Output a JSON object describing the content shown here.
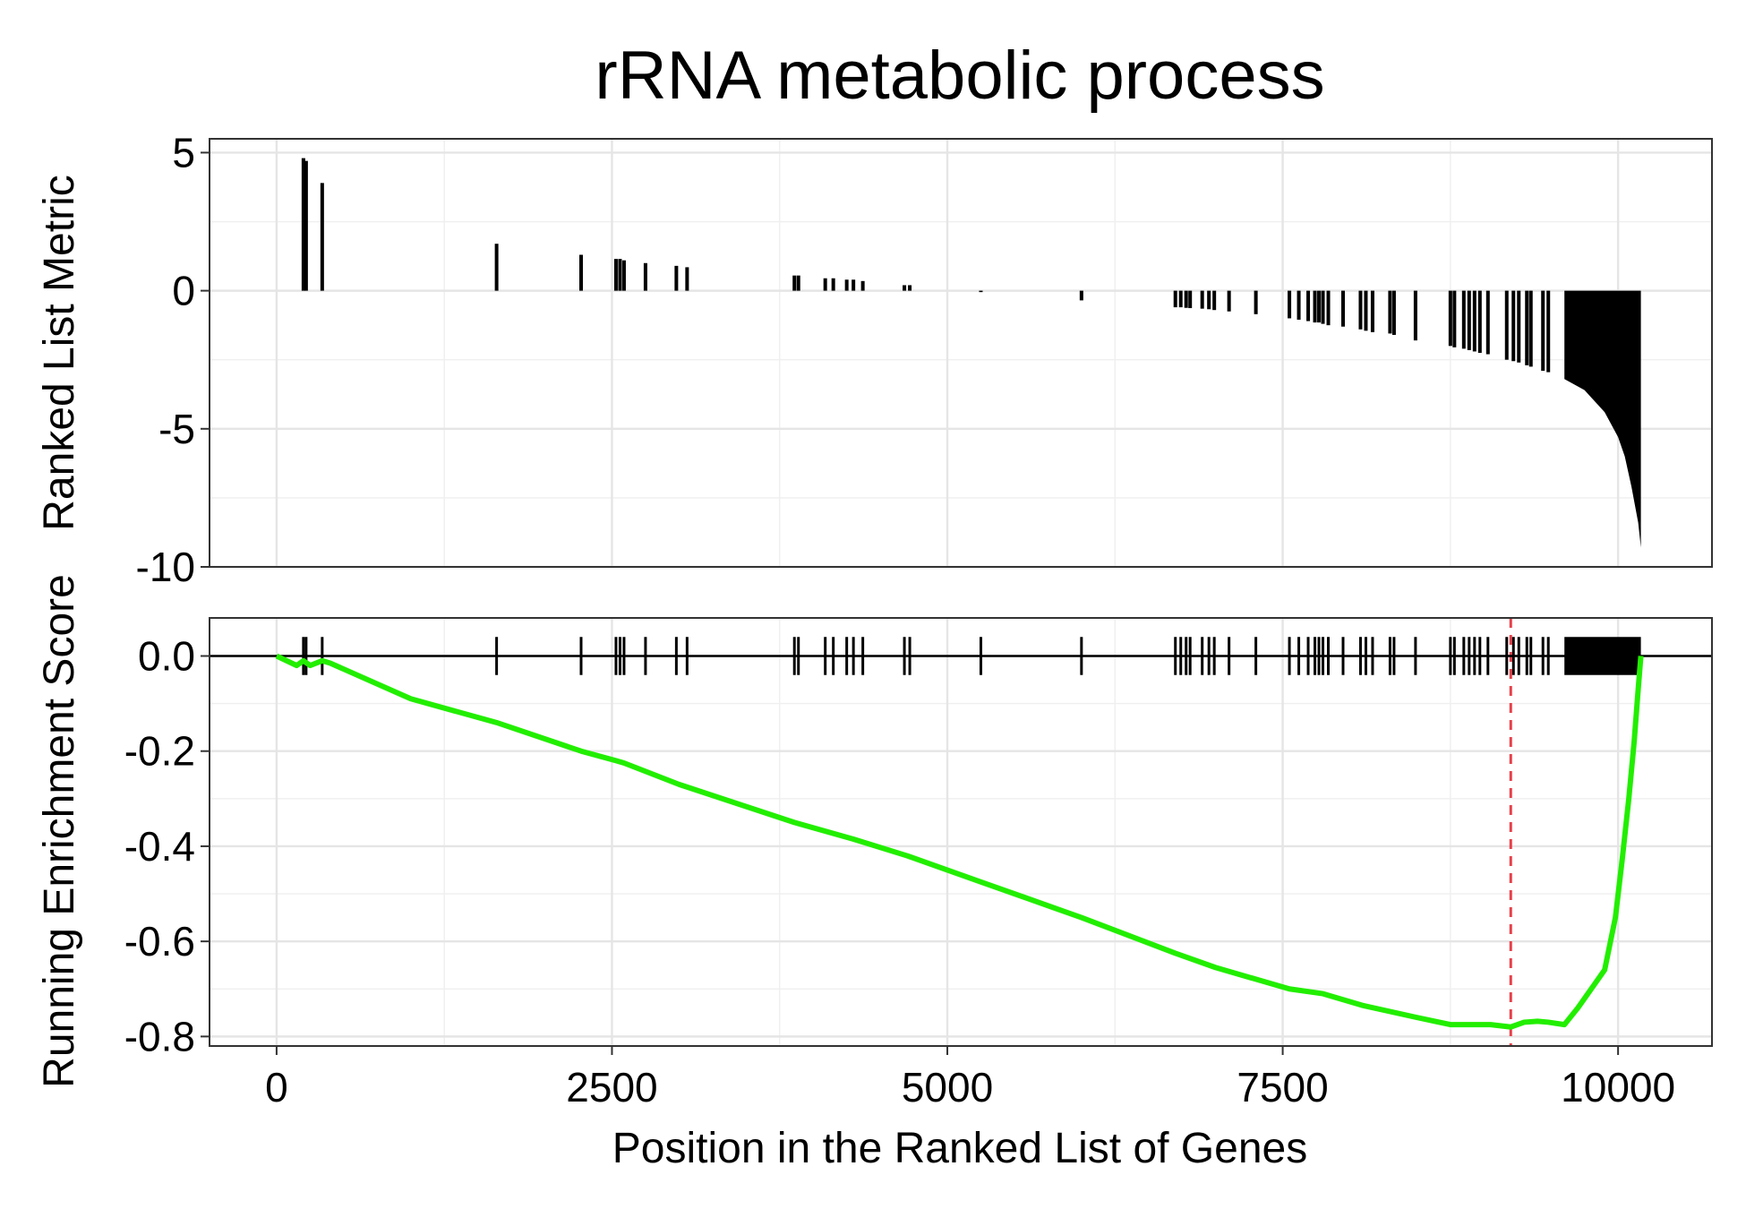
{
  "chart_data": [
    {
      "panel": "top",
      "type": "bar",
      "title": "rRNA metabolic process",
      "ylabel": "Ranked List Metric",
      "xlim": [
        -500,
        10700
      ],
      "ylim": [
        -10,
        5.5
      ],
      "yticks": [
        5,
        0,
        -5,
        -10
      ],
      "ytick_labels": [
        "5",
        "0",
        "-5",
        "-10"
      ],
      "grid": true,
      "bars": [
        {
          "x": 200,
          "y": 4.8
        },
        {
          "x": 220,
          "y": 4.7
        },
        {
          "x": 340,
          "y": 3.9
        },
        {
          "x": 1640,
          "y": 1.7
        },
        {
          "x": 2270,
          "y": 1.3
        },
        {
          "x": 2530,
          "y": 1.15
        },
        {
          "x": 2560,
          "y": 1.15
        },
        {
          "x": 2590,
          "y": 1.1
        },
        {
          "x": 2750,
          "y": 1.0
        },
        {
          "x": 2980,
          "y": 0.9
        },
        {
          "x": 3060,
          "y": 0.85
        },
        {
          "x": 3860,
          "y": 0.55
        },
        {
          "x": 3890,
          "y": 0.55
        },
        {
          "x": 4090,
          "y": 0.45
        },
        {
          "x": 4150,
          "y": 0.45
        },
        {
          "x": 4250,
          "y": 0.4
        },
        {
          "x": 4300,
          "y": 0.4
        },
        {
          "x": 4370,
          "y": 0.35
        },
        {
          "x": 4680,
          "y": 0.2
        },
        {
          "x": 4720,
          "y": 0.2
        },
        {
          "x": 5250,
          "y": -0.05
        },
        {
          "x": 6000,
          "y": -0.35
        },
        {
          "x": 6700,
          "y": -0.6
        },
        {
          "x": 6740,
          "y": -0.6
        },
        {
          "x": 6780,
          "y": -0.62
        },
        {
          "x": 6810,
          "y": -0.63
        },
        {
          "x": 6900,
          "y": -0.65
        },
        {
          "x": 6950,
          "y": -0.67
        },
        {
          "x": 6990,
          "y": -0.7
        },
        {
          "x": 7100,
          "y": -0.75
        },
        {
          "x": 7300,
          "y": -0.85
        },
        {
          "x": 7550,
          "y": -1.0
        },
        {
          "x": 7620,
          "y": -1.05
        },
        {
          "x": 7690,
          "y": -1.1
        },
        {
          "x": 7740,
          "y": -1.15
        },
        {
          "x": 7770,
          "y": -1.15
        },
        {
          "x": 7800,
          "y": -1.2
        },
        {
          "x": 7840,
          "y": -1.25
        },
        {
          "x": 7950,
          "y": -1.3
        },
        {
          "x": 8080,
          "y": -1.4
        },
        {
          "x": 8120,
          "y": -1.45
        },
        {
          "x": 8170,
          "y": -1.5
        },
        {
          "x": 8300,
          "y": -1.55
        },
        {
          "x": 8330,
          "y": -1.6
        },
        {
          "x": 8490,
          "y": -1.8
        },
        {
          "x": 8750,
          "y": -2.0
        },
        {
          "x": 8780,
          "y": -2.05
        },
        {
          "x": 8850,
          "y": -2.1
        },
        {
          "x": 8890,
          "y": -2.15
        },
        {
          "x": 8930,
          "y": -2.2
        },
        {
          "x": 8970,
          "y": -2.25
        },
        {
          "x": 9030,
          "y": -2.3
        },
        {
          "x": 9170,
          "y": -2.5
        },
        {
          "x": 9220,
          "y": -2.55
        },
        {
          "x": 9260,
          "y": -2.6
        },
        {
          "x": 9320,
          "y": -2.7
        },
        {
          "x": 9350,
          "y": -2.75
        },
        {
          "x": 9440,
          "y": -2.9
        },
        {
          "x": 9480,
          "y": -2.95
        }
      ],
      "dense_region": {
        "x": [
          9600,
          9750,
          9900,
          10000,
          10050,
          10100,
          10150,
          10170
        ],
        "y": [
          -3.2,
          -3.6,
          -4.4,
          -5.3,
          -6.0,
          -7.1,
          -8.4,
          -9.3
        ]
      }
    },
    {
      "panel": "bottom",
      "type": "line",
      "xlabel": "Position in the Ranked List of Genes",
      "ylabel": "Running Enrichment Score",
      "xlim": [
        -500,
        10700
      ],
      "ylim": [
        -0.82,
        0.08
      ],
      "xticks": [
        0,
        2500,
        5000,
        7500,
        10000
      ],
      "xtick_labels": [
        "0",
        "2500",
        "5000",
        "7500",
        "10000"
      ],
      "yticks": [
        0.0,
        -0.2,
        -0.4,
        -0.6,
        -0.8
      ],
      "ytick_labels": [
        "0.0",
        "-0.2",
        "-0.4",
        "-0.6",
        "-0.8"
      ],
      "grid": true,
      "series": [
        {
          "color": "#22ee00",
          "x": [
            0,
            150,
            200,
            250,
            340,
            400,
            1000,
            1640,
            2270,
            2530,
            2590,
            3000,
            3860,
            4300,
            4700,
            5250,
            6000,
            6700,
            7000,
            7550,
            7800,
            8100,
            8500,
            8750,
            8900,
            9050,
            9200,
            9300,
            9400,
            9480,
            9600,
            9700,
            9800,
            9900,
            9980,
            10030,
            10080,
            10120,
            10150,
            10170
          ],
          "y": [
            0.0,
            -0.02,
            -0.01,
            -0.02,
            -0.01,
            -0.015,
            -0.09,
            -0.14,
            -0.2,
            -0.22,
            -0.225,
            -0.27,
            -0.35,
            -0.385,
            -0.42,
            -0.475,
            -0.55,
            -0.625,
            -0.655,
            -0.7,
            -0.71,
            -0.735,
            -0.76,
            -0.775,
            -0.775,
            -0.775,
            -0.78,
            -0.77,
            -0.768,
            -0.77,
            -0.775,
            -0.74,
            -0.7,
            -0.66,
            -0.55,
            -0.43,
            -0.3,
            -0.18,
            -0.07,
            0.0
          ]
        }
      ],
      "hits": [
        200,
        220,
        340,
        1640,
        2270,
        2530,
        2560,
        2590,
        2750,
        2980,
        3060,
        3860,
        3890,
        4090,
        4150,
        4250,
        4300,
        4370,
        4680,
        4720,
        5250,
        6000,
        6700,
        6740,
        6780,
        6810,
        6900,
        6950,
        6990,
        7100,
        7300,
        7550,
        7620,
        7690,
        7740,
        7770,
        7800,
        7840,
        7950,
        8080,
        8120,
        8170,
        8300,
        8330,
        8490,
        8750,
        8780,
        8850,
        8890,
        8930,
        8970,
        9030,
        9170,
        9220,
        9260,
        9320,
        9350,
        9440,
        9480
      ],
      "hits_dense_range": [
        9600,
        10170
      ],
      "hit_color": "#000000",
      "max_deviation_x": 9200,
      "max_deviation_color": "#e8404a"
    }
  ]
}
